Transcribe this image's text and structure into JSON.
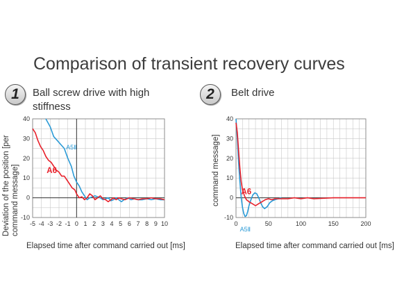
{
  "title": "Comparison of transient recovery curves",
  "colors": {
    "a6": "#e8202a",
    "a5": "#2a9ad6",
    "grid": "#c8c8c8"
  },
  "panels": [
    {
      "number": "1",
      "subtitle_line1": "Ball screw drive with high",
      "subtitle_line2": "stiffness",
      "xlabel": "Elapsed time after command carried out [ms]",
      "ylabel_line1": "Deviation of the position [per",
      "ylabel_line2": "command message]"
    },
    {
      "number": "2",
      "subtitle_line1": "Belt drive",
      "subtitle_line2": "",
      "xlabel": "Elapsed time after command carried out [ms]",
      "ylabel_line1": "command message]",
      "ylabel_line2": ""
    }
  ],
  "chart_data": [
    {
      "type": "line",
      "xlim": [
        -5,
        10
      ],
      "ylim": [
        -10,
        40
      ],
      "x_ticks": [
        -5,
        -4,
        -3,
        -2,
        -1,
        0,
        1,
        2,
        3,
        4,
        5,
        6,
        7,
        8,
        9,
        10
      ],
      "y_ticks": [
        -10,
        0,
        10,
        20,
        30,
        40
      ],
      "x_tick_labels": [
        "-5",
        "-4",
        "-3",
        "-2",
        "-1",
        "0",
        "1",
        "2",
        "3",
        "4",
        "5",
        "6",
        "7",
        "8",
        "9",
        "10"
      ],
      "y_tick_labels": [
        "-10",
        "0",
        "10",
        "20",
        "30",
        "40"
      ],
      "grid": true,
      "series": [
        {
          "name": "A6",
          "color": "#e8202a",
          "x": [
            -5,
            -4.7,
            -4.4,
            -4.1,
            -3.8,
            -3.5,
            -3.2,
            -2.9,
            -2.6,
            -2.3,
            -2.0,
            -1.7,
            -1.4,
            -1.1,
            -0.8,
            -0.5,
            -0.2,
            0,
            0.3,
            0.6,
            0.9,
            1.2,
            1.5,
            1.8,
            2.1,
            2.4,
            2.7,
            3.0,
            3.3,
            3.6,
            3.9,
            4.2,
            4.5,
            4.8,
            5.1,
            5.5,
            6.0,
            6.5,
            7.0,
            7.5,
            8.0,
            8.5,
            9.0,
            9.5,
            10
          ],
          "y": [
            35,
            33,
            29,
            26,
            24,
            21,
            19,
            18,
            16,
            14,
            13,
            11,
            11,
            9,
            7,
            5,
            4,
            2,
            0,
            0.5,
            -1,
            0,
            2,
            1,
            -1,
            0,
            1,
            -0.5,
            -1,
            -2,
            -1,
            0,
            -1,
            0,
            -0.5,
            -1,
            0,
            -0.5,
            -1,
            -0.5,
            -0.5,
            0,
            -0.5,
            -0.5,
            -1
          ]
        },
        {
          "name": "A5Ⅱ",
          "color": "#2a9ad6",
          "x": [
            -3.5,
            -3.0,
            -2.6,
            -2.2,
            -1.8,
            -1.4,
            -1.0,
            -0.6,
            -0.3,
            0,
            0.3,
            0.6,
            0.9,
            1.2,
            1.5,
            1.8,
            2.1,
            2.4,
            2.7,
            3.0,
            3.3,
            3.6,
            3.9,
            4.2,
            4.5,
            4.8,
            5.1,
            5.4,
            5.8,
            6.2,
            6.6,
            7.0,
            7.5,
            8.0,
            8.5,
            9.0,
            9.5,
            10
          ],
          "y": [
            40,
            36,
            31,
            29,
            27,
            25,
            20,
            16,
            11,
            8,
            6,
            3,
            1,
            -1,
            0,
            0.5,
            1,
            0.5,
            0,
            -1,
            -0.5,
            0,
            -1.5,
            -1,
            0,
            -1,
            -2,
            -1,
            0,
            -1,
            -0.5,
            -1,
            -1,
            -0.5,
            -1,
            -0.5,
            -1,
            -1
          ]
        }
      ],
      "annotations": [
        {
          "text": "A5Ⅱ",
          "x": -1.2,
          "y": 24.5,
          "series": "A5Ⅱ"
        },
        {
          "text": "A6",
          "x": -3.4,
          "y": 12.5,
          "series": "A6"
        }
      ]
    },
    {
      "type": "line",
      "xlim": [
        0,
        200
      ],
      "ylim": [
        -10,
        40
      ],
      "x_ticks": [
        0,
        50,
        100,
        150,
        200
      ],
      "y_ticks": [
        -10,
        0,
        10,
        20,
        30,
        40
      ],
      "x_tick_labels": [
        "0",
        "50",
        "100",
        "150",
        "200"
      ],
      "y_tick_labels": [
        "-10",
        "0",
        "10",
        "20",
        "30",
        "40"
      ],
      "grid": true,
      "series": [
        {
          "name": "A6",
          "color": "#e8202a",
          "x": [
            0,
            2,
            4,
            6,
            8,
            10,
            13,
            16,
            20,
            25,
            30,
            35,
            40,
            45,
            50,
            55,
            60,
            70,
            80,
            90,
            100,
            110,
            120,
            150,
            200
          ],
          "y": [
            38,
            33,
            24,
            15,
            8,
            4,
            1,
            -1,
            -2,
            -3,
            -4,
            -3,
            -2,
            -1,
            -0.5,
            -1,
            -0.5,
            -0.5,
            -0.5,
            0,
            -0.5,
            0,
            -0.5,
            0,
            0
          ]
        },
        {
          "name": "A5Ⅱ",
          "color": "#2a9ad6",
          "x": [
            0,
            2,
            4,
            6,
            8,
            10,
            12,
            14,
            16,
            18,
            20,
            23,
            26,
            29,
            32,
            35,
            38,
            41,
            44,
            48,
            52,
            56,
            60,
            65,
            70
          ],
          "y": [
            40,
            30,
            18,
            8,
            0,
            -5,
            -8,
            -9.5,
            -9,
            -7,
            -4,
            -1,
            1.5,
            2.5,
            2,
            0,
            -2.5,
            -4.5,
            -5.5,
            -4.5,
            -2.5,
            -1.5,
            -1,
            -0.5,
            0
          ]
        }
      ],
      "annotations": [
        {
          "text": "A6",
          "x": 8,
          "y": 1.8,
          "series": "A6"
        },
        {
          "text": "A5Ⅱ",
          "x": 6,
          "y": -17,
          "series": "A5Ⅱ"
        }
      ]
    }
  ]
}
